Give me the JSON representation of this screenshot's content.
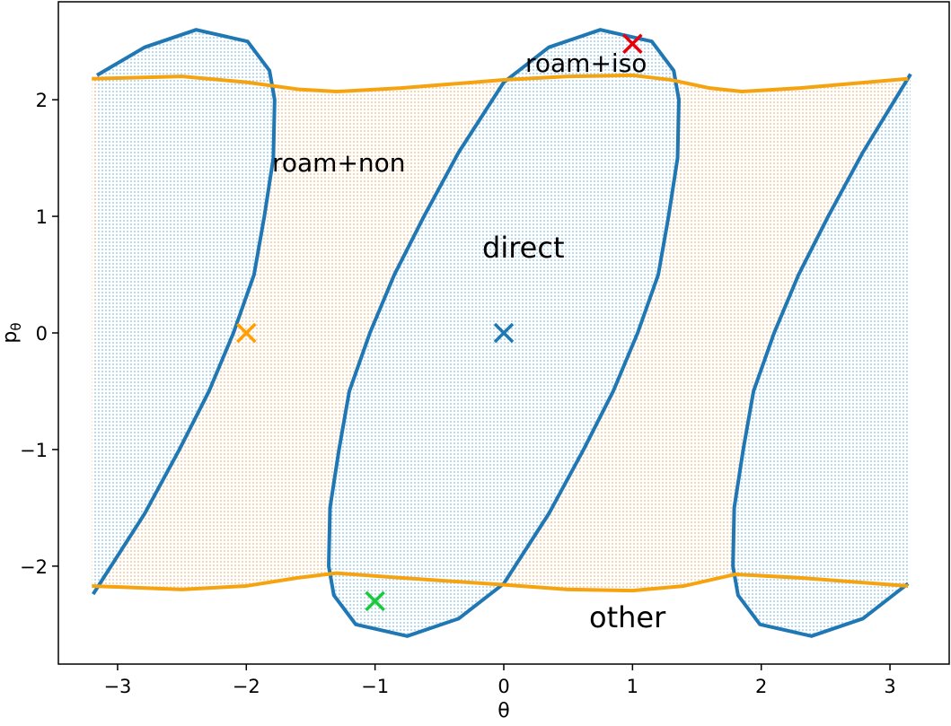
{
  "chart_data": {
    "type": "line",
    "xlabel": "θ",
    "ylabel": "p",
    "ylabel_sub": "θ",
    "xlim": [
      -3.46,
      3.46
    ],
    "ylim": [
      -2.84,
      2.84
    ],
    "xticks": [
      {
        "value": -3,
        "label": "−3"
      },
      {
        "value": -2,
        "label": "−2"
      },
      {
        "value": -1,
        "label": "−1"
      },
      0,
      1,
      2,
      3
    ],
    "yticks": [
      {
        "value": -2,
        "label": "−2"
      },
      {
        "value": -1,
        "label": "−1"
      },
      0,
      1,
      2
    ],
    "band_color": "#f8c9a0",
    "series": [
      {
        "color": "#1f77b4",
        "fill": "#9fd0ee",
        "closed": true,
        "x": [
          0.75,
          1.15,
          1.32,
          1.36,
          1.35,
          1.28,
          1.2,
          1.04,
          0.85,
          0.62,
          0.35,
          0,
          -0.35,
          -0.75,
          -1.15,
          -1.32,
          -1.36,
          -1.35,
          -1.28,
          -1.2,
          -1.04,
          -0.85,
          -0.62,
          -0.35,
          0,
          0.35,
          0.75
        ],
        "y": [
          2.6,
          2.5,
          2.25,
          2,
          1.5,
          1,
          0.5,
          0,
          -0.5,
          -1,
          -1.55,
          -2.15,
          -2.45,
          -2.6,
          -2.5,
          -2.25,
          -2,
          -1.5,
          -1,
          -0.5,
          0,
          0.5,
          1,
          1.55,
          2.15,
          2.45,
          2.6
        ]
      },
      {
        "color": "#1f77b4",
        "fill": "#9fd0ee",
        "closed": false,
        "x": [
          -3.19,
          -2.79,
          -2.52,
          -2.29,
          -2.1,
          -1.94,
          -1.86,
          -1.79,
          -1.78,
          -1.82,
          -1.99,
          -2.39,
          -2.79,
          -3.16
        ],
        "y": [
          -2.24,
          -1.55,
          -1,
          -0.5,
          0,
          0.5,
          1,
          1.5,
          2,
          2.25,
          2.5,
          2.6,
          2.45,
          2.21
        ]
      },
      {
        "color": "#1f77b4",
        "fill": "#9fd0ee",
        "closed": false,
        "x": [
          3.16,
          2.79,
          2.52,
          2.29,
          2.1,
          1.94,
          1.86,
          1.79,
          1.78,
          1.82,
          1.99,
          2.39,
          2.79,
          3.14
        ],
        "y": [
          2.22,
          1.55,
          1,
          0.5,
          0,
          -0.5,
          -1,
          -1.5,
          -2,
          -2.25,
          -2.5,
          -2.6,
          -2.45,
          -2.15
        ]
      },
      {
        "color": "#f5a30f",
        "x": [
          -3.2,
          -2.5,
          -2,
          -1.6,
          -1.3,
          -0.8,
          0,
          0.5,
          1,
          1.3,
          1.6,
          1.85,
          2.3,
          3.14
        ],
        "y": [
          2.18,
          2.2,
          2.15,
          2.09,
          2.07,
          2.1,
          2.17,
          2.2,
          2.21,
          2.17,
          2.1,
          2.07,
          2.1,
          2.18
        ]
      },
      {
        "color": "#f5a30f",
        "x": [
          -3.2,
          -2.5,
          -2,
          -1.6,
          -1.3,
          -0.8,
          0,
          0.5,
          1,
          1.4,
          1.8,
          2.3,
          3.14
        ],
        "y": [
          -2.17,
          -2.2,
          -2.17,
          -2.1,
          -2.06,
          -2.1,
          -2.16,
          -2.2,
          -2.21,
          -2.17,
          -2.07,
          -2.1,
          -2.17
        ]
      }
    ],
    "markers": [
      {
        "x": -2,
        "y": 0,
        "color": "#ff9f00"
      },
      {
        "x": 0,
        "y": 0,
        "color": "#1f77b4"
      },
      {
        "x": 1,
        "y": 2.48,
        "color": "#e8000b"
      },
      {
        "x": -1,
        "y": -2.3,
        "color": "#1ac938"
      }
    ],
    "annotations": [
      "roam+non",
      "direct",
      "roam+iso",
      "other"
    ]
  }
}
